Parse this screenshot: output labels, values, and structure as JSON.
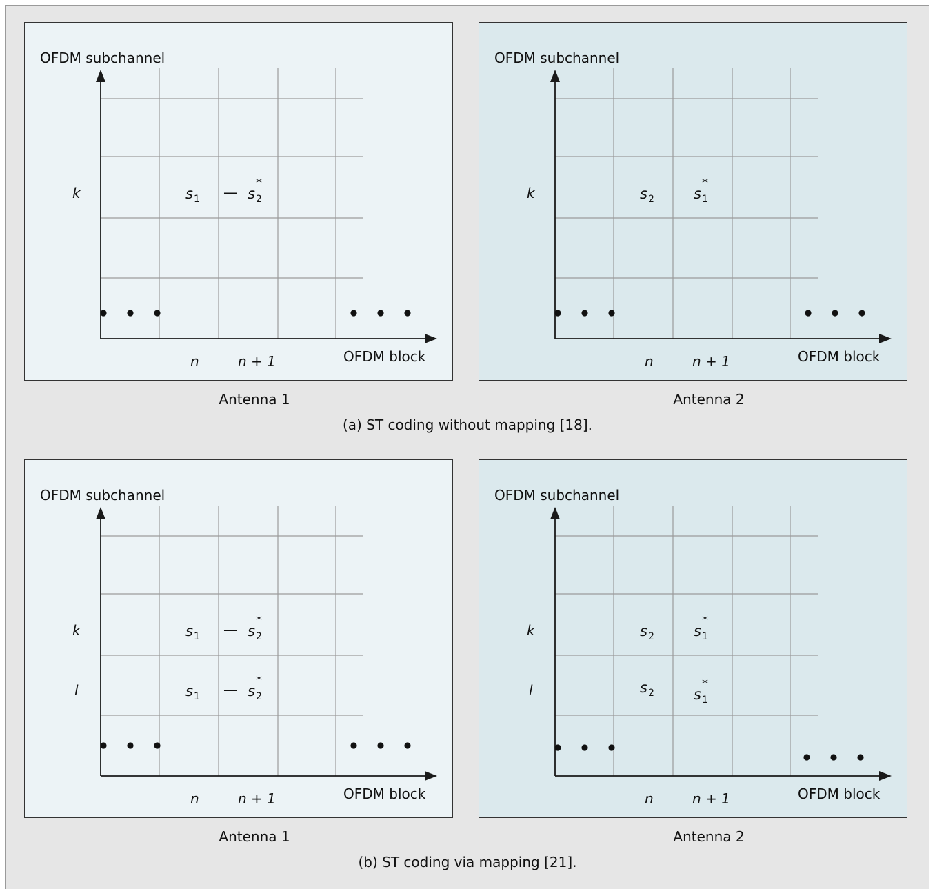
{
  "axis": {
    "y_label": "OFDM subchannel",
    "x_label": "OFDM block",
    "n_label": "n",
    "n1_label": "n + 1",
    "k_label": "k",
    "l_label": "l"
  },
  "symbols": {
    "s": "s",
    "sub1": "1",
    "sub2": "2",
    "star": "*",
    "dash": "—"
  },
  "panels": {
    "a1": {
      "caption": "Antenna 1"
    },
    "a2": {
      "caption": "Antenna 2"
    },
    "b1": {
      "caption": "Antenna 1"
    },
    "b2": {
      "caption": "Antenna 2"
    }
  },
  "captions": {
    "a": "(a) ST coding without mapping [18].",
    "b": "(b) ST coding via mapping [21]."
  },
  "colors": {
    "antenna1_bg": "#ecf3f6",
    "antenna2_bg": "#dbe9ed",
    "grid": "#9b9b9b",
    "axis": "#1a1a1a"
  }
}
